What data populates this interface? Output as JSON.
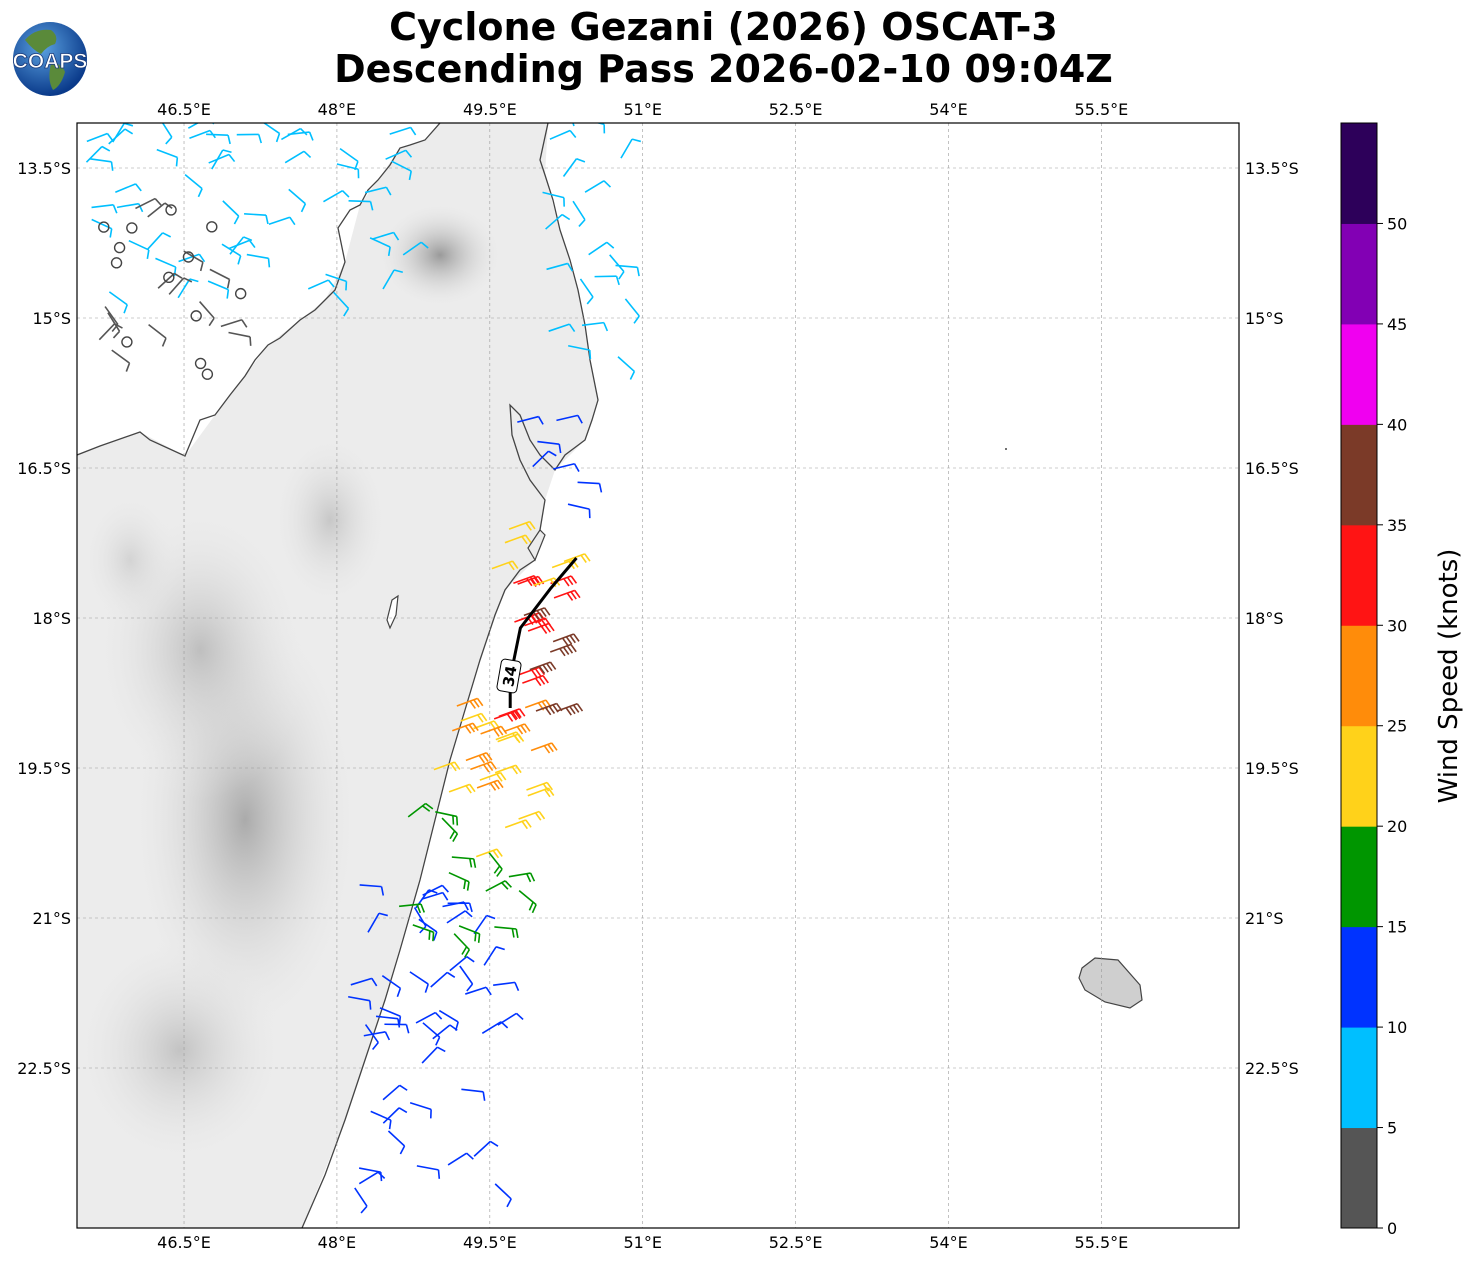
{
  "title": {
    "line1": "Cyclone Gezani (2026) OSCAT-3",
    "line2": "Descending Pass 2026-02-10 09:04Z"
  },
  "logo": {
    "text": "COAPS",
    "icon": "globe-logo"
  },
  "map": {
    "lon_range": [
      45.45,
      56.85
    ],
    "lat_range": [
      -24.1,
      -13.05
    ],
    "lon_ticks": [
      "46.5°E",
      "48°E",
      "49.5°E",
      "51°E",
      "52.5°E",
      "54°E",
      "55.5°E"
    ],
    "lat_ticks": [
      "13.5°S",
      "15°S",
      "16.5°S",
      "18°S",
      "19.5°S",
      "21°S",
      "22.5°S"
    ],
    "gridlines": true,
    "contour_34kt": {
      "label": "34",
      "color": "#000000"
    }
  },
  "colorbar": {
    "label": "Wind Speed (knots)",
    "ticks": [
      "0",
      "5",
      "10",
      "15",
      "20",
      "25",
      "30",
      "35",
      "40",
      "45",
      "50"
    ],
    "colors": [
      "#555555",
      "#00bfff",
      "#0033ff",
      "#009600",
      "#ffd21a",
      "#ff8c0a",
      "#ff1414",
      "#7b3a28",
      "#f000f0",
      "#8200b4",
      "#2d005a"
    ]
  },
  "chart_data": {
    "type": "wind-barb-map",
    "units": "knots",
    "bins": [
      {
        "range": "0-5",
        "color": "#555555"
      },
      {
        "range": "5-10",
        "color": "#00bfff"
      },
      {
        "range": "10-15",
        "color": "#0033ff"
      },
      {
        "range": "15-20",
        "color": "#009600"
      },
      {
        "range": "20-25",
        "color": "#ffd21a"
      },
      {
        "range": "25-30",
        "color": "#ff8c0a"
      },
      {
        "range": "30-35",
        "color": "#ff1414"
      },
      {
        "range": "35-40",
        "color": "#7b3a28"
      },
      {
        "range": "40-45",
        "color": "#f000f0"
      },
      {
        "range": "45-50",
        "color": "#8200b4"
      },
      {
        "range": ">50",
        "color": "#2d005a"
      }
    ],
    "swath_segments": [
      {
        "lat": [
          -20.6,
          -23.9
        ],
        "lon": [
          48.1,
          49.6
        ],
        "speed": 13
      },
      {
        "lat": [
          -19.9,
          -21.2
        ],
        "lon": [
          48.6,
          49.8
        ],
        "speed": 17
      },
      {
        "lat": [
          -19.0,
          -20.4
        ],
        "lon": [
          48.9,
          49.9
        ],
        "speed": 23
      },
      {
        "lat": [
          -18.7,
          -19.8
        ],
        "lon": [
          49.1,
          50.0
        ],
        "speed": 28
      },
      {
        "lat": [
          -17.6,
          -19.5
        ],
        "lon": [
          49.5,
          50.2
        ],
        "speed": 33
      },
      {
        "lat": [
          -17.7,
          -19.0
        ],
        "lon": [
          49.8,
          50.2
        ],
        "speed": 37
      },
      {
        "lat": [
          -17.0,
          -17.7
        ],
        "lon": [
          49.4,
          50.3
        ],
        "speed": 23
      },
      {
        "lat": [
          -15.9,
          -16.9
        ],
        "lon": [
          49.7,
          50.5
        ],
        "speed": 12
      },
      {
        "lat": [
          -13.0,
          -15.4
        ],
        "lon": [
          50.0,
          50.9
        ],
        "speed": 9
      },
      {
        "lat": [
          -13.0,
          -14.8
        ],
        "lon": [
          45.5,
          48.7
        ],
        "speed": 7
      },
      {
        "lat": [
          -13.8,
          -15.6
        ],
        "lon": [
          45.6,
          47.2
        ],
        "speed": 2
      }
    ],
    "contour_34kt_points": [
      [
        -17.4,
        50.35
      ],
      [
        -17.7,
        50.1
      ],
      [
        -18.1,
        49.8
      ],
      [
        -18.6,
        49.7
      ],
      [
        -18.9,
        49.7
      ]
    ]
  }
}
